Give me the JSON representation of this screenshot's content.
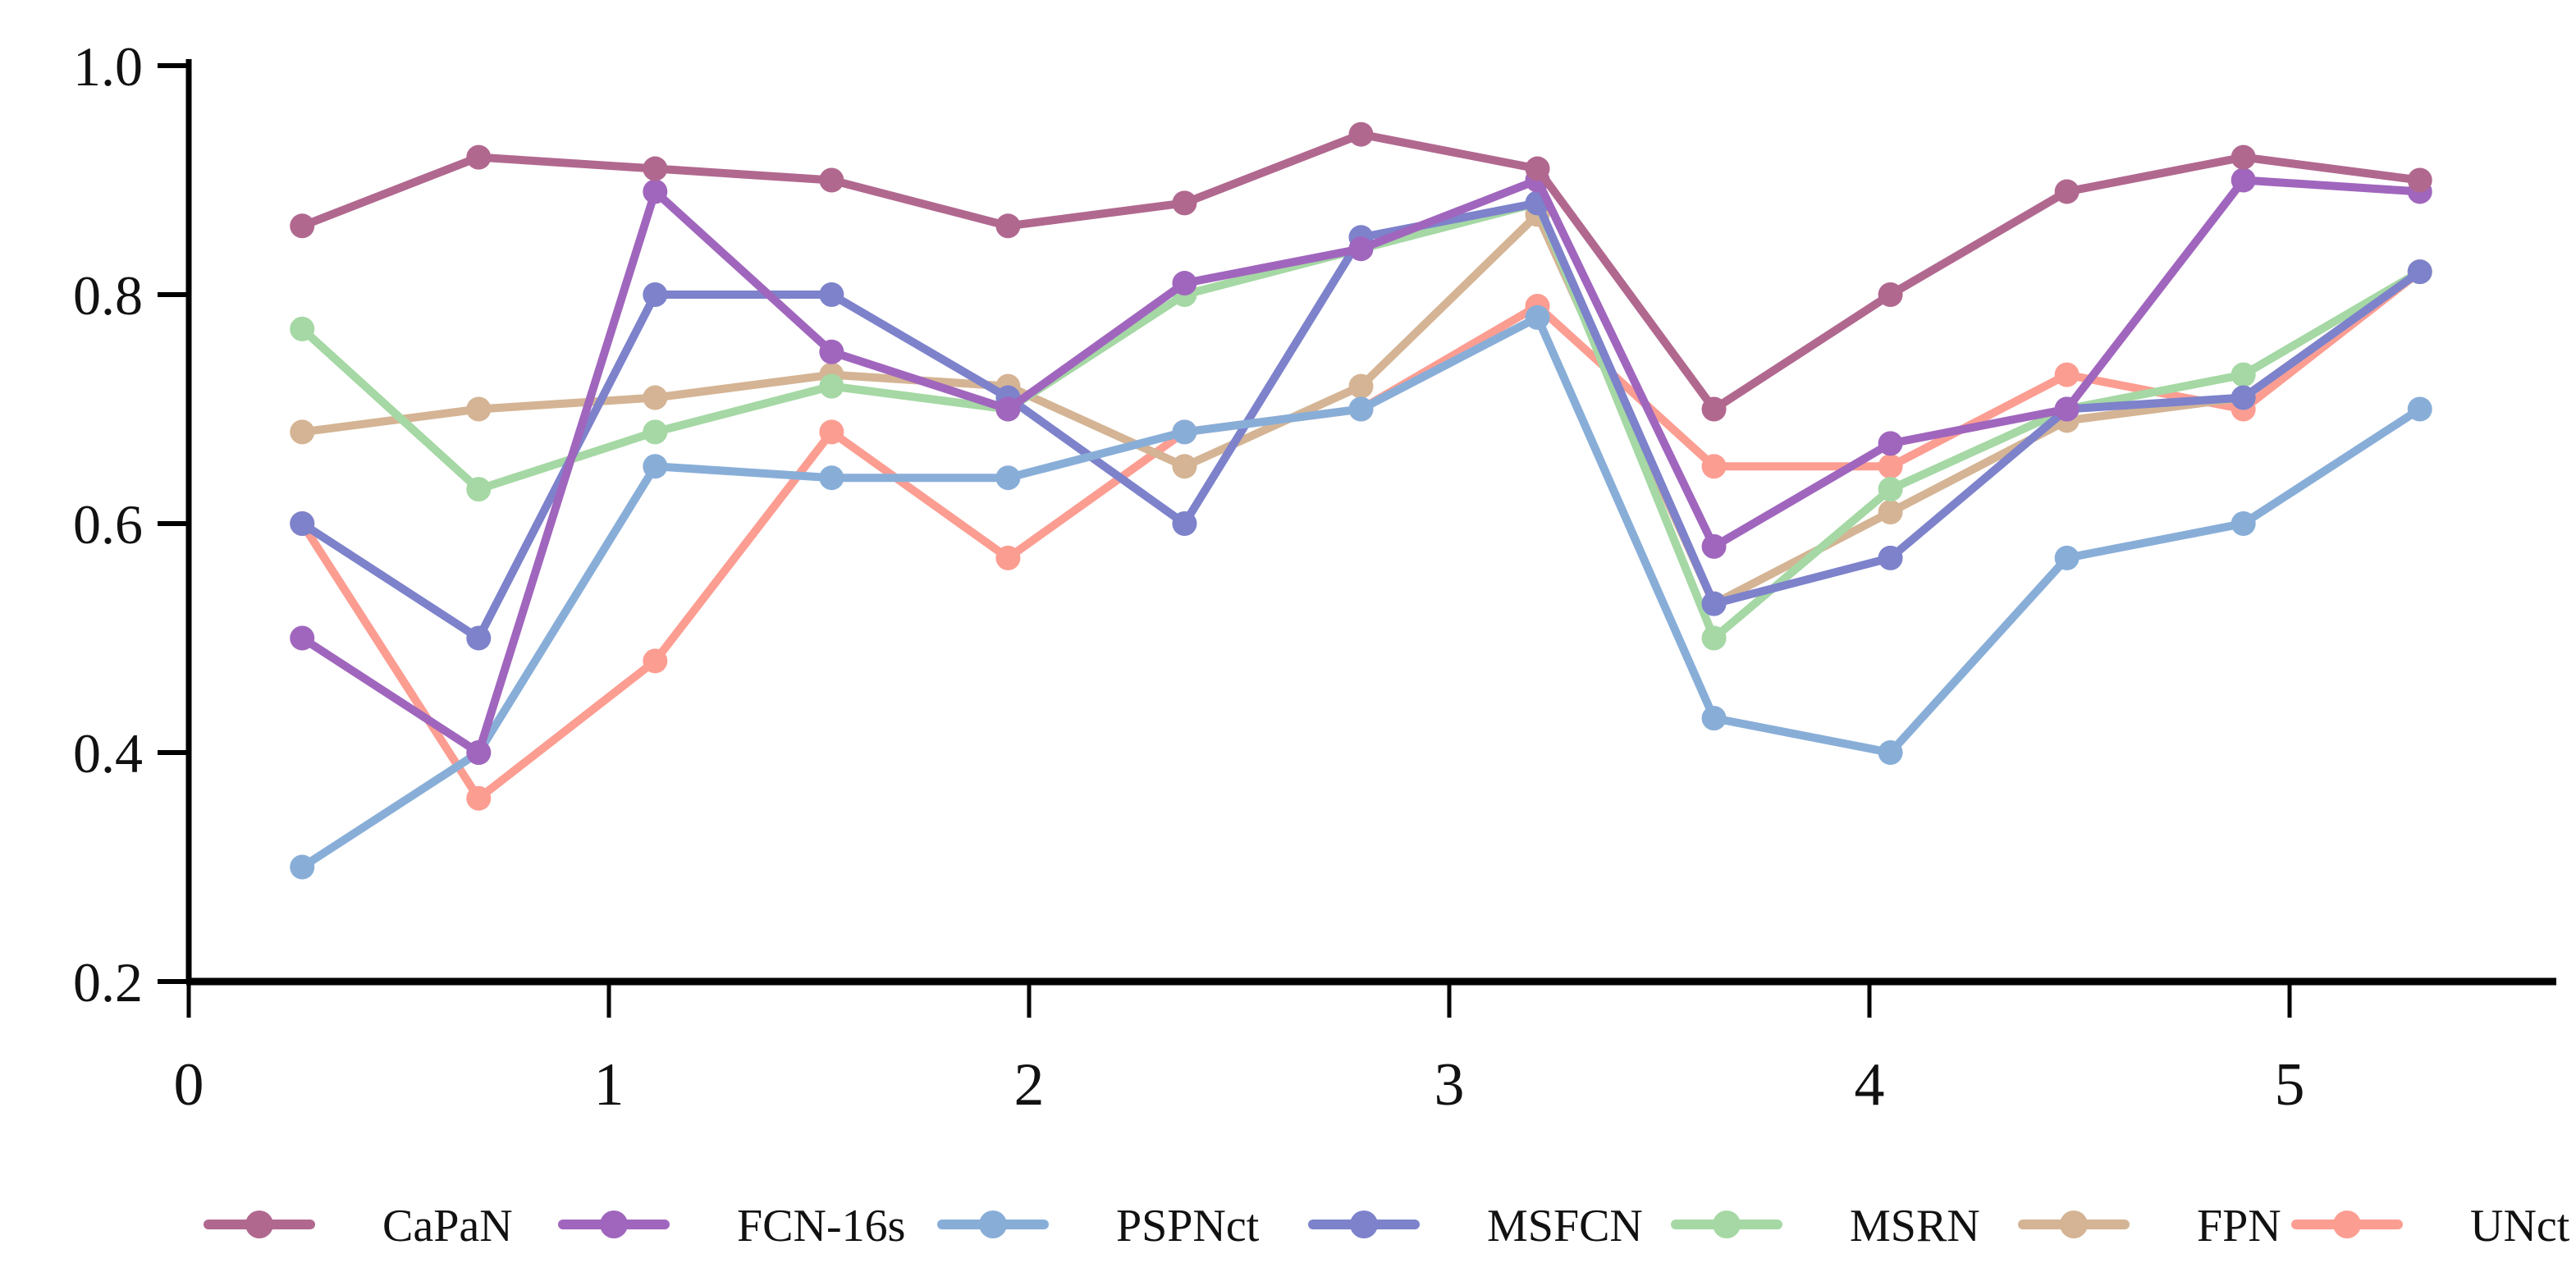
{
  "figure": {
    "background_color": "#ffffff",
    "axis_color": "#000000",
    "text_color": "#111111"
  },
  "chart_data": {
    "type": "line",
    "title": "",
    "xlabel": "",
    "ylabel": "",
    "grid": false,
    "legend_position": "bottom",
    "xlim": [
      0,
      5.68
    ],
    "ylim": [
      0.2,
      1.0
    ],
    "x_tick_labels": [
      "0",
      "1",
      "2",
      "3",
      "4",
      "5"
    ],
    "x_tick_values": [
      0,
      1,
      2,
      3,
      4,
      5
    ],
    "y_tick_labels": [
      "1.0",
      "0.8",
      "0.6",
      "0.4",
      "0.2"
    ],
    "y_tick_values": [
      1.0,
      0.8,
      0.6,
      0.4,
      0.2
    ],
    "x": [
      0.27,
      0.69,
      1.11,
      1.53,
      1.95,
      2.37,
      2.79,
      3.21,
      3.63,
      4.05,
      4.47,
      4.89,
      5.31
    ],
    "series": [
      {
        "name": "CaPaN",
        "color": "#b1688f",
        "values": [
          0.86,
          0.92,
          0.91,
          0.9,
          0.86,
          0.88,
          0.94,
          0.91,
          0.7,
          0.8,
          0.89,
          0.92,
          0.9
        ]
      },
      {
        "name": "FCN-16s",
        "color": "#a066bd",
        "values": [
          0.5,
          0.4,
          0.89,
          0.75,
          0.7,
          0.81,
          0.84,
          0.9,
          0.58,
          0.67,
          0.7,
          0.9,
          0.89
        ]
      },
      {
        "name": "PSPNct",
        "color": "#88aed8",
        "values": [
          0.3,
          0.4,
          0.65,
          0.64,
          0.64,
          0.68,
          0.7,
          0.78,
          0.43,
          0.4,
          0.57,
          0.6,
          0.7
        ]
      },
      {
        "name": "MSFCN",
        "color": "#7d82cb",
        "values": [
          0.6,
          0.5,
          0.8,
          0.8,
          0.71,
          0.6,
          0.85,
          0.88,
          0.53,
          0.57,
          0.7,
          0.71,
          0.82
        ]
      },
      {
        "name": "MSRN",
        "color": "#a5d8a4",
        "values": [
          0.77,
          0.63,
          0.68,
          0.72,
          0.7,
          0.8,
          0.84,
          0.88,
          0.5,
          0.63,
          0.7,
          0.73,
          0.82
        ]
      },
      {
        "name": "FPN",
        "color": "#d4b494",
        "values": [
          0.68,
          0.7,
          0.71,
          0.73,
          0.72,
          0.65,
          0.72,
          0.87,
          0.53,
          0.61,
          0.69,
          0.71,
          0.82
        ]
      },
      {
        "name": "UNct",
        "color": "#fc9d92",
        "values": [
          0.6,
          0.36,
          0.48,
          0.68,
          0.57,
          0.68,
          0.7,
          0.79,
          0.65,
          0.65,
          0.73,
          0.7,
          0.82
        ]
      }
    ]
  }
}
